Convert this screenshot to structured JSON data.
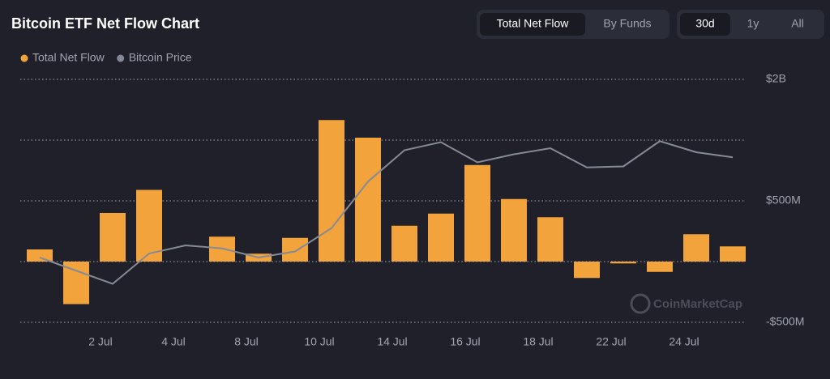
{
  "tabs": [
    "Total Net Flow",
    "By Funds"
  ],
  "ranges": [
    "30d",
    "1y",
    "All"
  ],
  "watermark": "CoinMarketCap",
  "chart_data": {
    "type": "bar",
    "title": "Bitcoin ETF Net Flow Chart",
    "categories": [
      null,
      "2 Jul",
      null,
      "4 Jul",
      null,
      "8 Jul",
      null,
      "10 Jul",
      null,
      "14 Jul",
      null,
      "16 Jul",
      null,
      "18 Jul",
      null,
      "22 Jul",
      null,
      "24 Jul",
      null,
      null
    ],
    "series": [
      {
        "name": "Total Net Flow",
        "color": "#f2a33c",
        "values": [
          100000000,
          -350000000,
          400000000,
          590000000,
          null,
          205000000,
          65000000,
          195000000,
          1165000000,
          1020000000,
          295000000,
          395000000,
          795000000,
          515000000,
          365000000,
          -135000000,
          -15000000,
          -85000000,
          225000000,
          125000000
        ]
      },
      {
        "name": "Bitcoin Price",
        "color": "#858a96",
        "type": "line",
        "axis": "y2",
        "values": [
          56400,
          55100,
          53800,
          56800,
          57600,
          57300,
          56400,
          57000,
          59300,
          63900,
          67000,
          67800,
          65800,
          66600,
          67200,
          65300,
          65400,
          67900,
          66800,
          66300
        ]
      }
    ],
    "ylim": [
      -500000000,
      1500000000
    ],
    "yticks": [
      {
        "value": 1500000000,
        "label": "$2B"
      },
      {
        "value": 1000000000,
        "label": null
      },
      {
        "value": 500000000,
        "label": "$500M"
      },
      {
        "value": 0,
        "label": null
      },
      {
        "value": -500000000,
        "label": "-$500M"
      }
    ],
    "y2lim": [
      50000,
      74000
    ],
    "grid": true
  }
}
